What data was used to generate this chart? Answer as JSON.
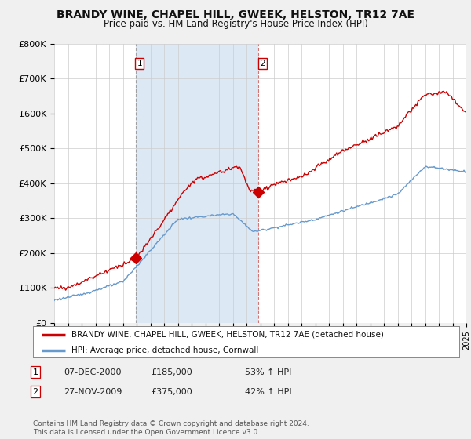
{
  "title": "BRANDY WINE, CHAPEL HILL, GWEEK, HELSTON, TR12 7AE",
  "subtitle": "Price paid vs. HM Land Registry's House Price Index (HPI)",
  "title_fontsize": 10,
  "subtitle_fontsize": 8.5,
  "red_label": "BRANDY WINE, CHAPEL HILL, GWEEK, HELSTON, TR12 7AE (detached house)",
  "blue_label": "HPI: Average price, detached house, Cornwall",
  "sale1_label": "07-DEC-2000",
  "sale1_price": "£185,000",
  "sale1_pct": "53% ↑ HPI",
  "sale2_label": "27-NOV-2009",
  "sale2_price": "£375,000",
  "sale2_pct": "42% ↑ HPI",
  "copyright_text": "Contains HM Land Registry data © Crown copyright and database right 2024.\nThis data is licensed under the Open Government Licence v3.0.",
  "ylim": [
    0,
    800000
  ],
  "yticks": [
    0,
    100000,
    200000,
    300000,
    400000,
    500000,
    600000,
    700000,
    800000
  ],
  "ytick_labels": [
    "£0",
    "£100K",
    "£200K",
    "£300K",
    "£400K",
    "£500K",
    "£600K",
    "£700K",
    "£800K"
  ],
  "xlim_start": 1995,
  "xlim_end": 2025,
  "bg_color": "#f0f0f0",
  "plot_bg_color": "#ffffff",
  "shade_color": "#dde8f5",
  "red_color": "#cc0000",
  "blue_color": "#6699cc",
  "vline1_color": "#999999",
  "vline2_color": "#cc6666",
  "grid_color": "#cccccc",
  "sale1_x": 2000.92,
  "sale1_y": 185000,
  "sale2_x": 2009.88,
  "sale2_y": 375000
}
